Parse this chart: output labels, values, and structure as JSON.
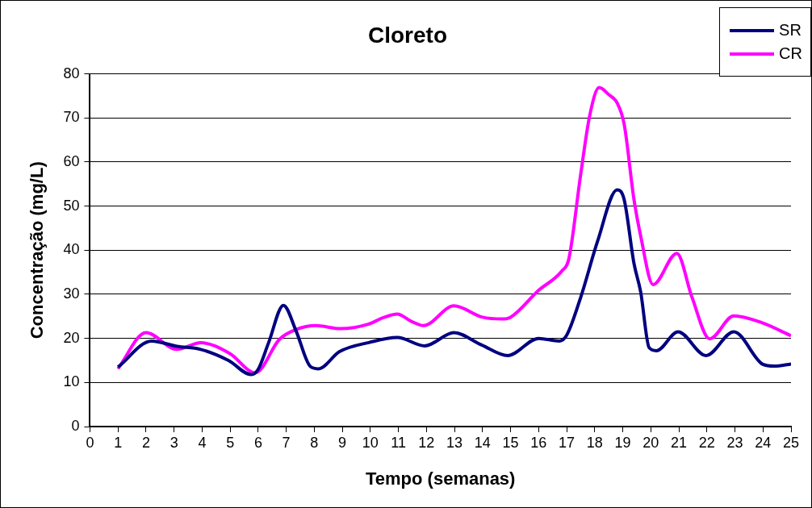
{
  "chart_data": {
    "type": "line",
    "title": "Cloreto",
    "xlabel": "Tempo (semanas)",
    "ylabel": "Concentração (mg/L)",
    "xlim": [
      0,
      25
    ],
    "xticks": [
      0,
      1,
      2,
      3,
      4,
      5,
      6,
      7,
      8,
      9,
      10,
      11,
      12,
      13,
      14,
      15,
      16,
      17,
      18,
      19,
      20,
      21,
      22,
      23,
      24,
      25
    ],
    "ylim": [
      0,
      80
    ],
    "yticks": [
      0,
      10,
      20,
      30,
      40,
      50,
      60,
      70,
      80
    ],
    "grid": "y",
    "legend": "top right",
    "marker": "none",
    "line_style": "solid",
    "series": [
      {
        "name": "SR",
        "color": "#000080",
        "x": [
          1,
          2.2,
          3.1,
          3.95,
          4.94,
          5.75,
          6,
          6.37,
          6.9,
          7.35,
          7.85,
          8.15,
          8.9,
          9.97,
          10.96,
          11.94,
          12.98,
          13.97,
          14.9,
          16,
          16.74,
          17,
          17.5,
          18.1,
          18.8,
          19.05,
          19.4,
          19.64,
          19.94,
          20.2,
          20.97,
          21.97,
          22.96,
          24,
          24.4,
          25
        ],
        "values": [
          13.5,
          19.4,
          18.2,
          17.5,
          15,
          11.8,
          13,
          19,
          27.5,
          21.7,
          13.7,
          13.1,
          17,
          19.1,
          20.2,
          18.3,
          21.3,
          18.5,
          16.1,
          20,
          19.4,
          20.7,
          29.3,
          42,
          53.7,
          51.5,
          37,
          30.5,
          17.9,
          17.2,
          21.5,
          16.1,
          21.5,
          14.1,
          13.7,
          14.2
        ]
      },
      {
        "name": "CR",
        "color": "#ff00ff",
        "x": [
          1,
          2,
          3.1,
          3.95,
          4.98,
          5.9,
          6.76,
          7.35,
          8.05,
          8.94,
          9.92,
          10.46,
          10.96,
          11.45,
          11.9,
          12.98,
          14,
          14.7,
          15,
          16,
          16.83,
          17.08,
          17.5,
          17.82,
          18.16,
          18.5,
          18.8,
          19.05,
          19.4,
          19.64,
          20.08,
          20.93,
          21.47,
          22.1,
          22.96,
          23.94,
          25
        ],
        "values": [
          13.1,
          21.3,
          17.5,
          19,
          16.6,
          12.2,
          19.8,
          22,
          22.9,
          22.2,
          23.2,
          24.7,
          25.5,
          23.9,
          22.9,
          27.4,
          24.8,
          24.4,
          24.8,
          30.9,
          35.3,
          38.1,
          57.2,
          70.5,
          76.9,
          75.3,
          73.4,
          68.6,
          51.5,
          43.2,
          32.2,
          39.3,
          29.3,
          19.9,
          25.1,
          23.6,
          20.6
        ]
      }
    ]
  }
}
